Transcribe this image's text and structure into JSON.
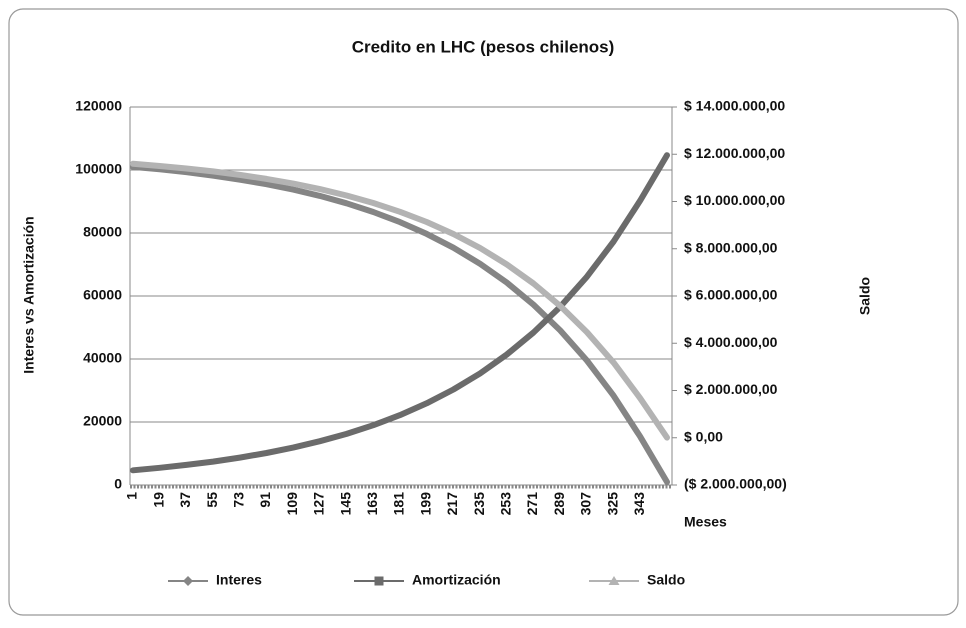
{
  "chart_data": {
    "type": "line",
    "title": "Credito en LHC (pesos chilenos)",
    "ylabel": "Interes  vs Amortización",
    "y2label": "Saldo",
    "xlabel": "Meses",
    "categories": [
      1,
      19,
      37,
      55,
      73,
      91,
      109,
      127,
      145,
      163,
      181,
      199,
      217,
      235,
      253,
      271,
      289,
      307,
      325,
      343,
      null
    ],
    "series": [
      {
        "name": "Interes",
        "color": "#858585",
        "marker": "diamond",
        "values": [
          101000,
          100213,
          99293,
          98218,
          96961,
          95492,
          93775,
          91768,
          89422,
          86680,
          83474,
          79727,
          75348,
          70229,
          64245,
          57251,
          49076,
          39521,
          28351,
          15296,
          950
        ]
      },
      {
        "name": "Amortización",
        "color": "#6b6b6b",
        "marker": "square",
        "values": [
          4660,
          5447,
          6367,
          7442,
          8699,
          10168,
          11885,
          13892,
          16238,
          18980,
          22186,
          25933,
          30312,
          35431,
          41415,
          48409,
          56584,
          66139,
          77309,
          90364,
          104710
        ]
      },
      {
        "name": "Saldo",
        "color": "#b3b3b3",
        "marker": "triangle",
        "axis": "y2",
        "values": [
          11595340,
          11504167,
          11397598,
          11273036,
          11127440,
          10957246,
          10758318,
          10525789,
          10253999,
          9936309,
          9564966,
          9130903,
          8623544,
          8030516,
          7337330,
          6527053,
          5580017,
          4472956,
          3179003,
          1666474,
          4571
        ]
      }
    ],
    "ylim": [
      0,
      120000
    ],
    "yticks": [
      0,
      20000,
      40000,
      60000,
      80000,
      100000,
      120000
    ],
    "y2lim": [
      -2000000,
      14000000
    ],
    "y2ticks": [
      {
        "value": -2000000,
        "label": "($ 2.000.000,00)"
      },
      {
        "value": 0,
        "label": "$ 0,00"
      },
      {
        "value": 2000000,
        "label": "$ 2.000.000,00"
      },
      {
        "value": 4000000,
        "label": "$ 4.000.000,00"
      },
      {
        "value": 6000000,
        "label": "$ 6.000.000,00"
      },
      {
        "value": 8000000,
        "label": "$ 8.000.000,00"
      },
      {
        "value": 10000000,
        "label": "$ 10.000.000,00"
      },
      {
        "value": 12000000,
        "label": "$ 12.000.000,00"
      },
      {
        "value": 14000000,
        "label": "$ 14.000.000,00"
      }
    ],
    "grid": true,
    "legend": "bottom"
  }
}
